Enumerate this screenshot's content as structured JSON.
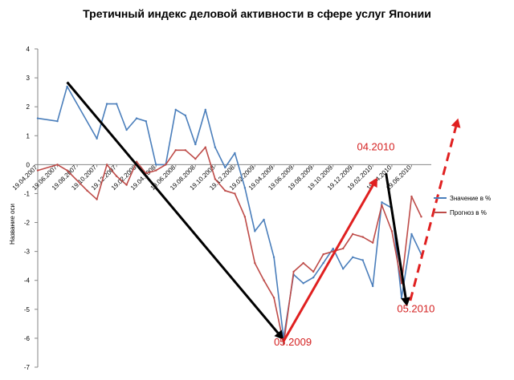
{
  "chart_data": {
    "type": "line",
    "title": "Третичный индекс деловой активности в сфере услуг Японии",
    "ylabel": "Название оси",
    "xlabel": "",
    "ylim": [
      -7,
      4
    ],
    "yticks": [
      4,
      3,
      2,
      1,
      0,
      -1,
      -2,
      -3,
      -4,
      -5,
      -6,
      -7
    ],
    "grid": false,
    "legend_position": "right",
    "x_tick_labels": [
      "19.04.2007",
      "19.06.2007",
      "19.08.2007",
      "19.10.2007",
      "19.12.2007",
      "19.02.2008",
      "19.04.2008",
      "19.06.2008",
      "19.08.2008",
      "19.10.2008",
      "19.12.2008",
      "19.02.2009",
      "19.04.2009",
      "19.06.2009",
      "19.08.2009",
      "19.10.2009",
      "19.12.2009",
      "19.02.2010",
      "19.04.2010",
      "19.06.2010"
    ],
    "x_range": [
      "2007-04-19",
      "2010-08-19"
    ],
    "series": [
      {
        "name": "Значение в %",
        "color": "#4a7ebb",
        "points": [
          [
            "2007-04-19",
            1.6
          ],
          [
            "2007-06-19",
            1.5
          ],
          [
            "2007-07-19",
            2.7
          ],
          [
            "2007-10-19",
            0.9
          ],
          [
            "2007-11-19",
            2.1
          ],
          [
            "2007-12-19",
            2.1
          ],
          [
            "2008-01-19",
            1.2
          ],
          [
            "2008-02-19",
            1.6
          ],
          [
            "2008-03-19",
            1.5
          ],
          [
            "2008-04-19",
            0.0
          ],
          [
            "2008-05-19",
            0.0
          ],
          [
            "2008-06-19",
            1.9
          ],
          [
            "2008-07-19",
            1.7
          ],
          [
            "2008-08-19",
            0.7
          ],
          [
            "2008-09-19",
            1.9
          ],
          [
            "2008-10-19",
            0.6
          ],
          [
            "2008-11-19",
            -0.1
          ],
          [
            "2008-12-19",
            0.4
          ],
          [
            "2009-01-19",
            -0.8
          ],
          [
            "2009-02-19",
            -2.3
          ],
          [
            "2009-03-19",
            -1.9
          ],
          [
            "2009-04-19",
            -3.2
          ],
          [
            "2009-05-19",
            -6.0
          ],
          [
            "2009-06-19",
            -3.8
          ],
          [
            "2009-07-19",
            -4.1
          ],
          [
            "2009-08-19",
            -3.9
          ],
          [
            "2009-09-19",
            -3.4
          ],
          [
            "2009-10-19",
            -2.9
          ],
          [
            "2009-11-19",
            -3.6
          ],
          [
            "2009-12-19",
            -3.2
          ],
          [
            "2010-01-19",
            -3.3
          ],
          [
            "2010-02-19",
            -4.2
          ],
          [
            "2010-03-19",
            -1.3
          ],
          [
            "2010-04-19",
            -1.5
          ],
          [
            "2010-05-19",
            -4.6
          ],
          [
            "2010-06-19",
            -2.4
          ],
          [
            "2010-07-19",
            -3.1
          ]
        ]
      },
      {
        "name": "Прогноз в %",
        "color": "#be4b48",
        "points": [
          [
            "2007-04-19",
            -0.2
          ],
          [
            "2007-06-19",
            0.0
          ],
          [
            "2007-07-19",
            -0.2
          ],
          [
            "2007-09-19",
            -0.9
          ],
          [
            "2007-10-19",
            -1.2
          ],
          [
            "2007-11-19",
            0.0
          ],
          [
            "2007-12-19",
            -0.4
          ],
          [
            "2008-01-19",
            -0.7
          ],
          [
            "2008-02-19",
            0.1
          ],
          [
            "2008-03-19",
            -0.3
          ],
          [
            "2008-04-19",
            -0.2
          ],
          [
            "2008-05-19",
            0.0
          ],
          [
            "2008-06-19",
            0.5
          ],
          [
            "2008-07-19",
            0.5
          ],
          [
            "2008-08-19",
            0.2
          ],
          [
            "2008-09-19",
            0.6
          ],
          [
            "2008-10-19",
            -0.5
          ],
          [
            "2008-11-19",
            -0.9
          ],
          [
            "2008-12-19",
            -1.0
          ],
          [
            "2009-01-19",
            -1.8
          ],
          [
            "2009-02-19",
            -3.4
          ],
          [
            "2009-03-19",
            -4.0
          ],
          [
            "2009-04-19",
            -4.6
          ],
          [
            "2009-05-19",
            -6.2
          ],
          [
            "2009-06-19",
            -3.7
          ],
          [
            "2009-07-19",
            -3.4
          ],
          [
            "2009-08-19",
            -3.7
          ],
          [
            "2009-09-19",
            -3.1
          ],
          [
            "2009-10-19",
            -3.0
          ],
          [
            "2009-11-19",
            -2.9
          ],
          [
            "2009-12-19",
            -2.4
          ],
          [
            "2010-01-19",
            -2.5
          ],
          [
            "2010-02-19",
            -2.7
          ],
          [
            "2010-03-19",
            -1.4
          ],
          [
            "2010-04-19",
            -2.3
          ],
          [
            "2010-05-19",
            -4.1
          ],
          [
            "2010-06-19",
            -1.1
          ],
          [
            "2010-07-19",
            -1.8
          ]
        ]
      }
    ],
    "annotations": {
      "labels": [
        {
          "text": "05.2009",
          "color": "#d42020",
          "x": "2009-04-19",
          "y": -6.25
        },
        {
          "text": "04.2010",
          "color": "#d42020",
          "x": "2010-01-01",
          "y": 0.5
        },
        {
          "text": "05.2010",
          "color": "#d42020",
          "x": "2010-05-05",
          "y": -5.1
        }
      ],
      "arrows": [
        {
          "color": "#000000",
          "style": "solid",
          "from": [
            "2007-07-19",
            2.85
          ],
          "to": [
            "2009-05-19",
            -6.05
          ]
        },
        {
          "color": "#e02020",
          "style": "solid",
          "from": [
            "2009-05-19",
            -6.1
          ],
          "to": [
            "2010-03-05",
            -0.45
          ]
        },
        {
          "color": "#000000",
          "style": "solid",
          "from": [
            "2010-04-01",
            -0.3
          ],
          "to": [
            "2010-06-05",
            -4.9
          ]
        },
        {
          "color": "#e02020",
          "style": "dashed",
          "from": [
            "2010-06-15",
            -4.7
          ],
          "to": [
            "2010-11-10",
            1.6
          ]
        }
      ]
    }
  }
}
